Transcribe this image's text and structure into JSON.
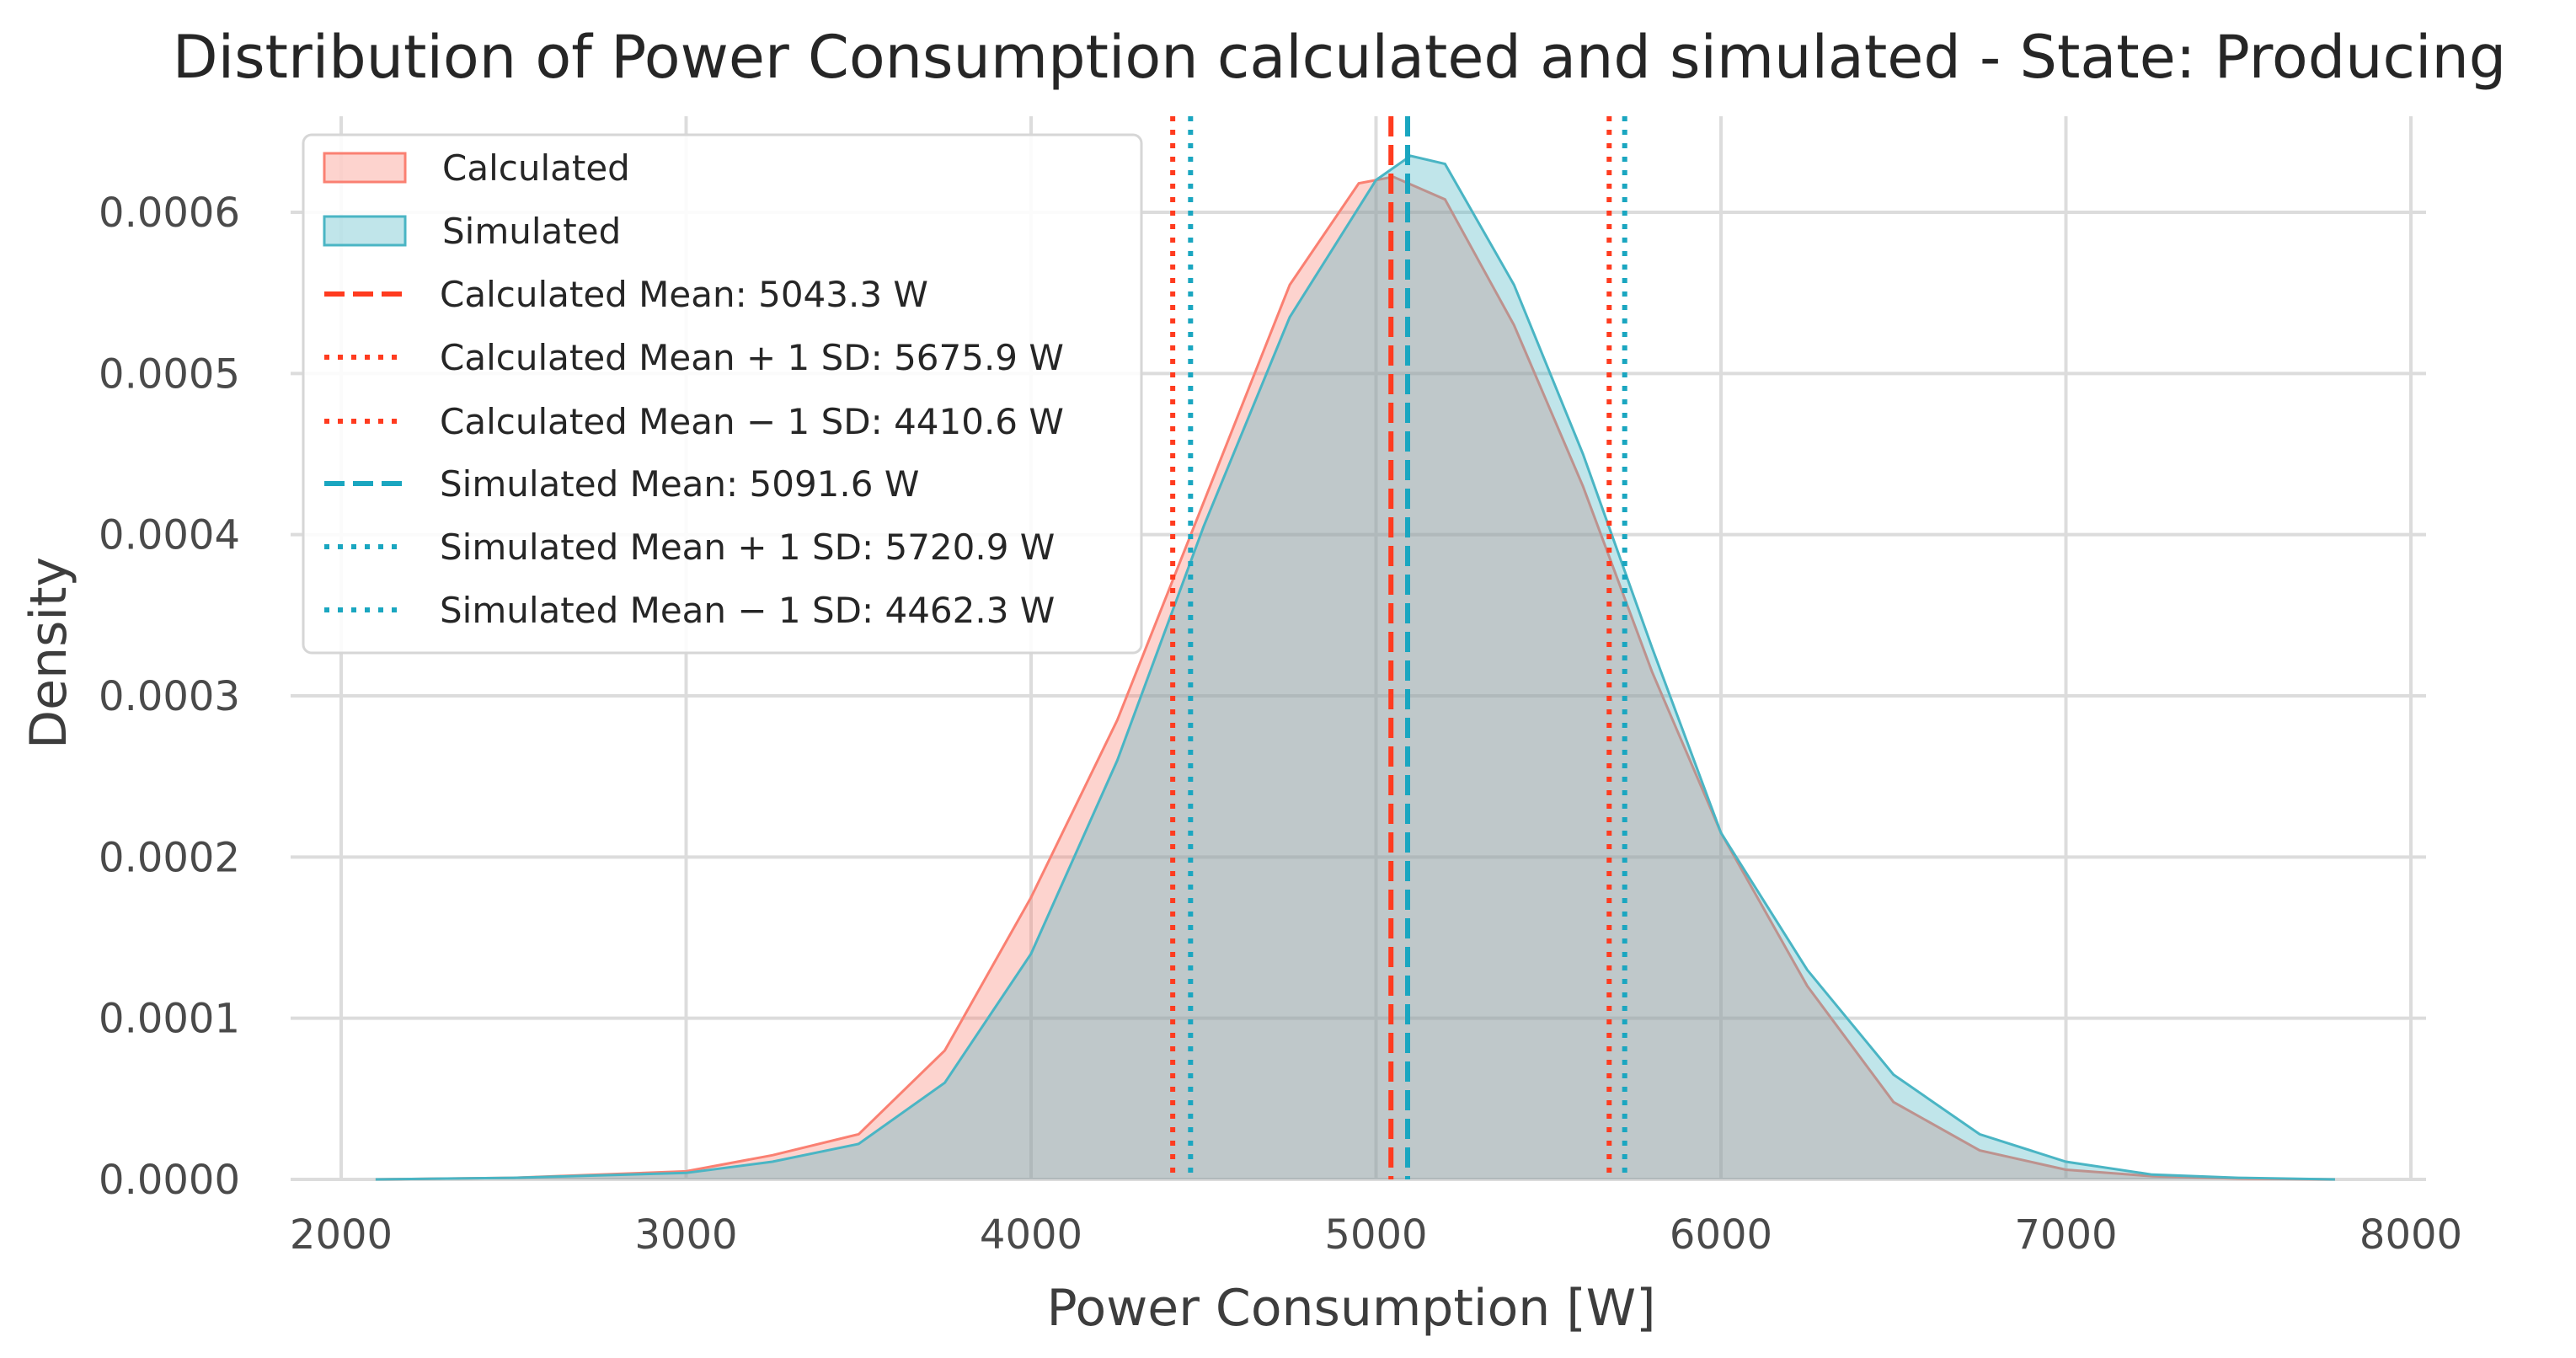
{
  "chart_data": {
    "type": "area",
    "title": "Distribution of Power Consumption calculated and simulated - State: Producing",
    "xlabel": "Power Consumption [W]",
    "ylabel": "Density",
    "xlim": [
      1800,
      8050
    ],
    "ylim": [
      0,
      0.00066
    ],
    "grid": true,
    "legend_position": "top-left",
    "x_ticks": [
      2000,
      3000,
      4000,
      5000,
      6000,
      7000,
      8000
    ],
    "x_tick_labels": [
      "2000",
      "3000",
      "4000",
      "5000",
      "6000",
      "7000",
      "8000"
    ],
    "y_ticks": [
      0,
      0.0001,
      0.0002,
      0.0003,
      0.0004,
      0.0005,
      0.0006
    ],
    "y_tick_labels": [
      "0.0000",
      "0.0001",
      "0.0002",
      "0.0003",
      "0.0004",
      "0.0005",
      "0.0006"
    ],
    "series": [
      {
        "name": "Calculated",
        "color": "#fa8072",
        "x": [
          2100,
          2500,
          3000,
          3250,
          3500,
          3750,
          4000,
          4250,
          4500,
          4750,
          4950,
          5050,
          5200,
          5400,
          5600,
          5800,
          6000,
          6250,
          6500,
          6750,
          7000,
          7250,
          7500,
          7780
        ],
        "y": [
          0,
          1e-06,
          5e-06,
          1.5e-05,
          2.8e-05,
          8e-05,
          0.000175,
          0.000285,
          0.00042,
          0.000555,
          0.000618,
          0.000622,
          0.000608,
          0.00053,
          0.00043,
          0.000315,
          0.000215,
          0.00012,
          4.8e-05,
          1.8e-05,
          6e-06,
          2e-06,
          5e-07,
          0
        ]
      },
      {
        "name": "Simulated",
        "color": "#4ab5c4",
        "x": [
          2100,
          2500,
          3000,
          3250,
          3500,
          3750,
          4000,
          4250,
          4500,
          4750,
          5000,
          5100,
          5200,
          5400,
          5600,
          5800,
          6000,
          6250,
          6500,
          6750,
          7000,
          7250,
          7500,
          7780
        ],
        "y": [
          0,
          1e-06,
          4e-06,
          1.1e-05,
          2.2e-05,
          6e-05,
          0.00014,
          0.00026,
          0.000405,
          0.000535,
          0.00062,
          0.000635,
          0.00063,
          0.000555,
          0.00045,
          0.00033,
          0.000215,
          0.00013,
          6.5e-05,
          2.8e-05,
          1.1e-05,
          3e-06,
          1e-06,
          0
        ]
      }
    ],
    "vertical_lines": [
      {
        "label": "Calculated Mean: 5043.3 W",
        "x": 5043.3,
        "color": "#ff3b1f",
        "style": "dashed"
      },
      {
        "label": "Calculated Mean + 1 SD: 5675.9 W",
        "x": 5675.9,
        "color": "#ff3b1f",
        "style": "dotted"
      },
      {
        "label": "Calculated Mean − 1 SD: 4410.6 W",
        "x": 4410.6,
        "color": "#ff3b1f",
        "style": "dotted"
      },
      {
        "label": "Simulated Mean: 5091.6 W",
        "x": 5091.6,
        "color": "#1aa6c0",
        "style": "dashed"
      },
      {
        "label": "Simulated Mean + 1 SD: 5720.9 W",
        "x": 5720.9,
        "color": "#1aa6c0",
        "style": "dotted"
      },
      {
        "label": "Simulated Mean − 1 SD: 4462.3 W",
        "x": 4462.3,
        "color": "#1aa6c0",
        "style": "dotted"
      }
    ]
  }
}
